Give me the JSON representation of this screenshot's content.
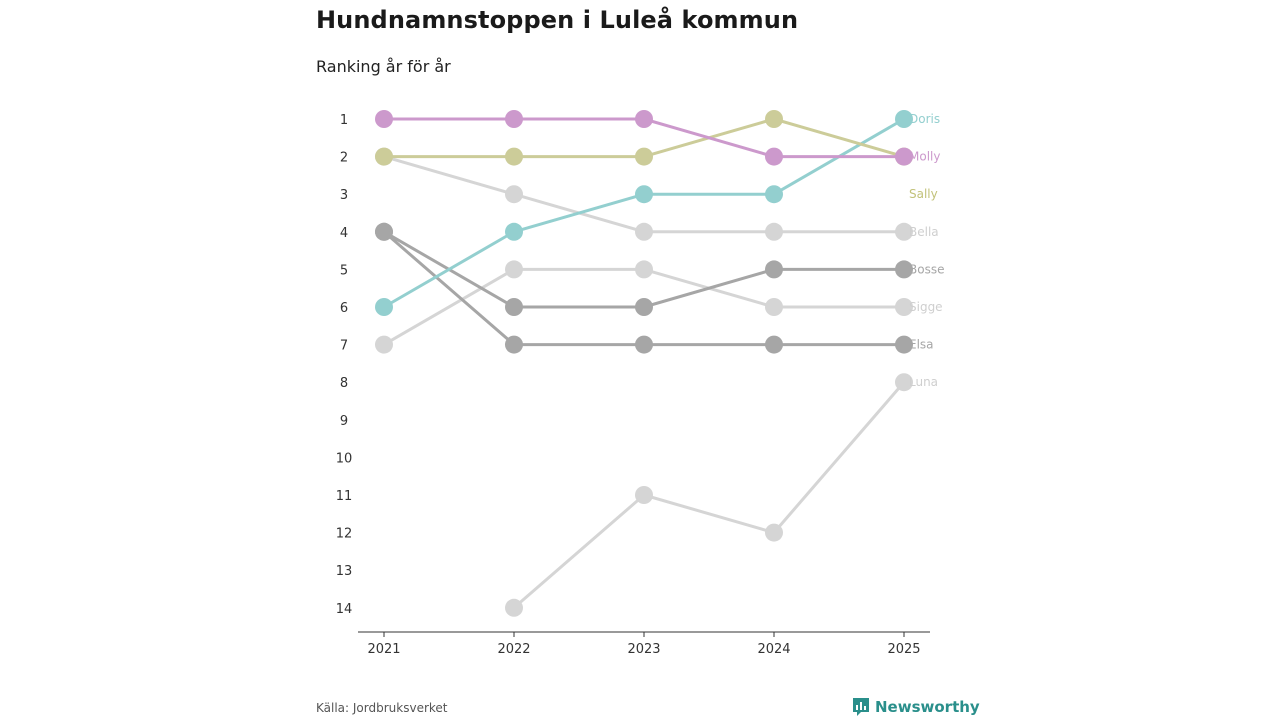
{
  "title": "Hundnamnstoppen i Luleå kommun",
  "subtitle": "Ranking år för år",
  "source": "Källa: Jordbruksverket",
  "brand": {
    "name": "Newsworthy",
    "color": "#2a8f8b"
  },
  "chart_data": {
    "type": "line",
    "subtype": "bump",
    "title": "Hundnamnstoppen i Luleå kommun",
    "subtitle": "Ranking år för år",
    "x": [
      "2021",
      "2022",
      "2023",
      "2024",
      "2025"
    ],
    "ylabel": "",
    "xlabel": "",
    "ylim": [
      1,
      14
    ],
    "y_inverted": true,
    "y_ticks": [
      "1",
      "2",
      "3",
      "4",
      "5",
      "6",
      "7",
      "8",
      "9",
      "10",
      "11",
      "12",
      "13",
      "14"
    ],
    "series": [
      {
        "name": "Bella",
        "color": "#d5d5d5",
        "values": [
          2,
          3,
          4,
          4,
          4
        ]
      },
      {
        "name": "Sigge",
        "color": "#d5d5d5",
        "values": [
          7,
          5,
          5,
          6,
          6
        ]
      },
      {
        "name": "Luna",
        "color": "#d5d5d5",
        "values": [
          null,
          14,
          11,
          12,
          8
        ]
      },
      {
        "name": "Bosse",
        "color": "#a6a6a6",
        "values": [
          4,
          6,
          6,
          5,
          5
        ]
      },
      {
        "name": "Elsa",
        "color": "#a6a6a6",
        "values": [
          4,
          7,
          7,
          7,
          7
        ]
      },
      {
        "name": "Doris",
        "color": "#93cfcf",
        "values": [
          6,
          4,
          3,
          3,
          1
        ]
      },
      {
        "name": "Sally",
        "color": "#cccc99",
        "values": [
          2,
          2,
          2,
          1,
          2
        ]
      },
      {
        "name": "Molly",
        "color": "#cc99cc",
        "values": [
          1,
          1,
          1,
          2,
          2
        ]
      }
    ],
    "end_labels": [
      {
        "name": "Doris",
        "rank": 1
      },
      {
        "name": "Molly",
        "rank": 2
      },
      {
        "name": "Sally",
        "rank": 3
      },
      {
        "name": "Bella",
        "rank": 4
      },
      {
        "name": "Bosse",
        "rank": 5
      },
      {
        "name": "Sigge",
        "rank": 6
      },
      {
        "name": "Elsa",
        "rank": 7
      },
      {
        "name": "Luna",
        "rank": 8
      }
    ]
  }
}
